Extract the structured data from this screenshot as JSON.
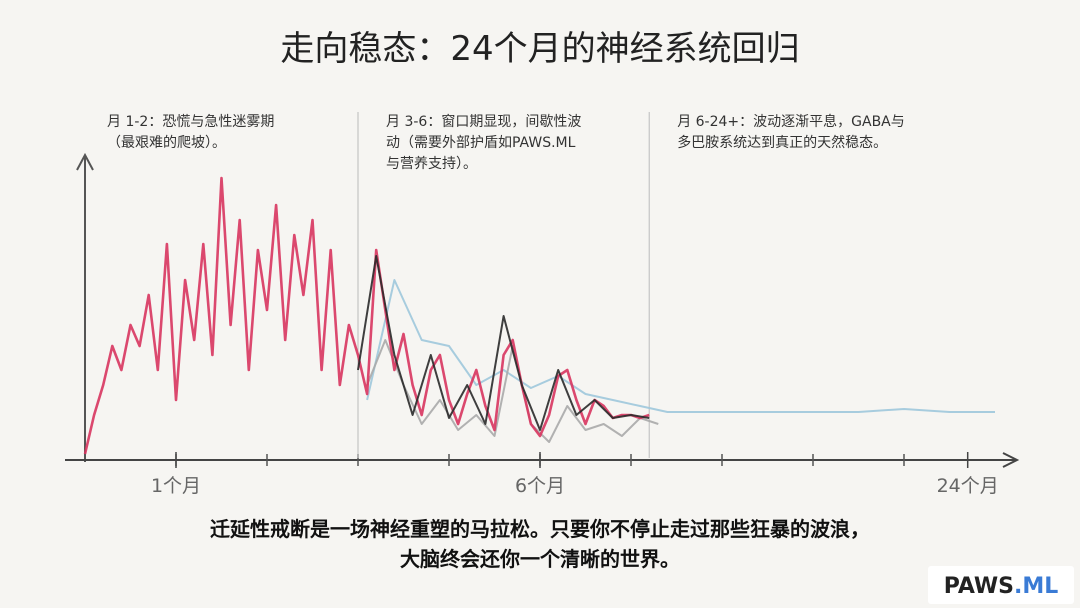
{
  "chart_data": {
    "type": "line",
    "title": "走向稳态：24个月的神经系统回归",
    "annotations": [
      [
        "月 1-2：恐慌与急性迷雾期",
        "（最艰难的爬坡）。"
      ],
      [
        "月 3-6：窗口期显现，间歇性波",
        "动（需要外部护盾如PAWS.ML",
        "与营养支持）。"
      ],
      [
        "月 6-24+：波动逐渐平息，GABA与",
        "多巴胺系统达到真正的天然稳态。"
      ]
    ],
    "dividers": [
      0,
      3,
      6.2
    ],
    "xlim": [
      0,
      10.2
    ],
    "ylim": [
      0,
      100
    ],
    "xticks": [
      {
        "value": 1,
        "label": "1个月"
      },
      {
        "value": 5,
        "label": "6个月"
      },
      {
        "value": 9.7,
        "label": "24个月"
      }
    ],
    "series": [
      {
        "color": "#9fc8dc",
        "x": [
          3.1,
          3.4,
          3.7,
          4.0,
          4.3,
          4.6,
          4.9,
          5.2,
          5.5,
          5.8,
          6.1,
          6.4,
          6.7,
          7.0,
          7.5,
          8.0,
          8.5,
          9.0,
          9.5,
          10.0
        ],
        "values": [
          20,
          60,
          40,
          38,
          25,
          30,
          24,
          28,
          22,
          20,
          18,
          16,
          16,
          16,
          16,
          16,
          16,
          17,
          16,
          16
        ]
      },
      {
        "color": "#aaaaaa",
        "x": [
          3.1,
          3.3,
          3.5,
          3.7,
          3.9,
          4.1,
          4.3,
          4.5,
          4.7,
          4.9,
          5.1,
          5.3,
          5.5,
          5.7,
          5.9,
          6.1,
          6.3
        ],
        "values": [
          25,
          40,
          25,
          12,
          20,
          10,
          15,
          8,
          38,
          12,
          6,
          18,
          10,
          12,
          8,
          14,
          12
        ]
      },
      {
        "color": "#d8355f",
        "x": [
          0,
          0.1,
          0.2,
          0.3,
          0.4,
          0.5,
          0.6,
          0.7,
          0.8,
          0.9,
          1.0,
          1.1,
          1.2,
          1.3,
          1.4,
          1.5,
          1.6,
          1.7,
          1.8,
          1.9,
          2.0,
          2.1,
          2.2,
          2.3,
          2.4,
          2.5,
          2.6,
          2.7,
          2.8,
          2.9,
          3.0,
          3.1,
          3.2,
          3.3,
          3.4,
          3.5,
          3.6,
          3.7,
          3.8,
          3.9,
          4.0,
          4.1,
          4.2,
          4.3,
          4.4,
          4.5,
          4.6,
          4.7,
          4.8,
          4.9,
          5.0,
          5.1,
          5.2,
          5.3,
          5.4,
          5.5,
          5.6,
          5.7,
          5.8,
          5.9,
          6.0,
          6.1,
          6.2
        ],
        "values": [
          2,
          15,
          25,
          38,
          30,
          45,
          38,
          55,
          30,
          72,
          20,
          60,
          40,
          72,
          35,
          94,
          45,
          80,
          30,
          70,
          50,
          85,
          40,
          75,
          55,
          80,
          30,
          70,
          25,
          45,
          35,
          22,
          70,
          50,
          30,
          42,
          25,
          15,
          30,
          35,
          20,
          12,
          22,
          30,
          18,
          10,
          35,
          40,
          25,
          12,
          8,
          15,
          28,
          30,
          20,
          12,
          20,
          18,
          14,
          15,
          15,
          14,
          15
        ]
      },
      {
        "color": "#2a2a2a",
        "x": [
          3.0,
          3.2,
          3.4,
          3.6,
          3.8,
          4.0,
          4.2,
          4.4,
          4.6,
          4.8,
          5.0,
          5.2,
          5.4,
          5.6,
          5.8,
          6.0,
          6.2
        ],
        "values": [
          30,
          68,
          35,
          15,
          35,
          14,
          25,
          12,
          48,
          25,
          10,
          30,
          15,
          20,
          14,
          15,
          14
        ]
      }
    ],
    "caption": [
      "迁延性戒断是一场神经重塑的马拉松。只要你不停止走过那些狂暴的波浪，",
      "大脑终会还你一个清晰的世界。"
    ],
    "brand": [
      "PAWS",
      ".ML"
    ]
  }
}
